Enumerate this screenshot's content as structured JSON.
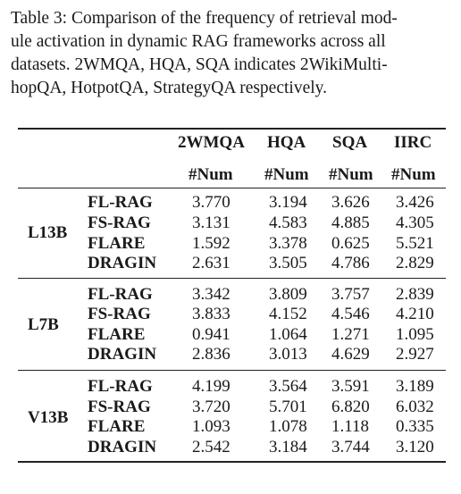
{
  "caption": {
    "lines": [
      "Table 3: Comparison of the frequency of retrieval mod-",
      "ule activation in dynamic RAG frameworks across all",
      "datasets. 2WMQA, HQA, SQA indicates 2WikiMulti-",
      "hopQA, HotpotQA, StrategyQA respectively."
    ]
  },
  "table": {
    "headers": [
      "2WMQA",
      "HQA",
      "SQA",
      "IIRC"
    ],
    "subheaders": [
      "#Num",
      "#Num",
      "#Num",
      "#Num"
    ],
    "groups": [
      {
        "model": "L13B",
        "rows": [
          {
            "method": "FL-RAG",
            "values": [
              "3.770",
              "3.194",
              "3.626",
              "3.426"
            ]
          },
          {
            "method": "FS-RAG",
            "values": [
              "3.131",
              "4.583",
              "4.885",
              "4.305"
            ]
          },
          {
            "method": "FLARE",
            "values": [
              "1.592",
              "3.378",
              "0.625",
              "5.521"
            ]
          },
          {
            "method": "DRAGIN",
            "values": [
              "2.631",
              "3.505",
              "4.786",
              "2.829"
            ]
          }
        ]
      },
      {
        "model": "L7B",
        "rows": [
          {
            "method": "FL-RAG",
            "values": [
              "3.342",
              "3.809",
              "3.757",
              "2.839"
            ]
          },
          {
            "method": "FS-RAG",
            "values": [
              "3.833",
              "4.152",
              "4.546",
              "4.210"
            ]
          },
          {
            "method": "FLARE",
            "values": [
              "0.941",
              "1.064",
              "1.271",
              "1.095"
            ]
          },
          {
            "method": "DRAGIN",
            "values": [
              "2.836",
              "3.013",
              "4.629",
              "2.927"
            ]
          }
        ]
      },
      {
        "model": "V13B",
        "rows": [
          {
            "method": "FL-RAG",
            "values": [
              "4.199",
              "3.564",
              "3.591",
              "3.189"
            ]
          },
          {
            "method": "FS-RAG",
            "values": [
              "3.720",
              "5.701",
              "6.820",
              "6.032"
            ]
          },
          {
            "method": "FLARE",
            "values": [
              "1.093",
              "1.078",
              "1.118",
              "0.335"
            ]
          },
          {
            "method": "DRAGIN",
            "values": [
              "2.542",
              "3.184",
              "3.744",
              "3.120"
            ]
          }
        ]
      }
    ]
  }
}
